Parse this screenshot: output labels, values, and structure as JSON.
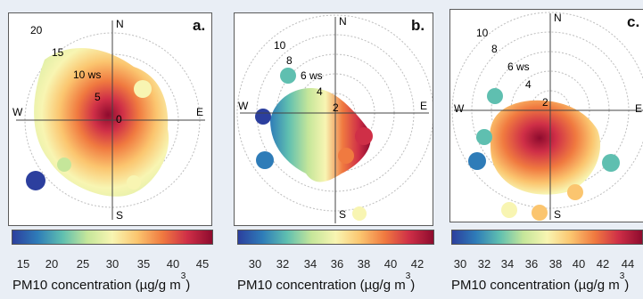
{
  "colors": {
    "scale": [
      "#2c3f9e",
      "#2e7cb8",
      "#5fbfb0",
      "#c5e69a",
      "#f8f5b2",
      "#fbc56f",
      "#f07a40",
      "#cf2f47",
      "#8e0b2e"
    ],
    "axis": "#444444",
    "ring": "#bdbdbd"
  },
  "labels": {
    "north": "N",
    "south": "S",
    "east": "E",
    "west": "W",
    "unit_label": "PM10 concentration (µg/g m",
    "unit_sup": "3",
    "unit_close": ")"
  },
  "panels": [
    {
      "letter": "a.",
      "ring_labels": [
        "20",
        "15",
        "10 ws",
        "5",
        "0"
      ],
      "ticks": [
        "15",
        "20",
        "25",
        "30",
        "35",
        "40",
        "45"
      ]
    },
    {
      "letter": "b.",
      "ring_labels": [
        "10",
        "8",
        "6 ws",
        "4",
        "2"
      ],
      "ticks": [
        "30",
        "32",
        "34",
        "36",
        "38",
        "40",
        "42"
      ]
    },
    {
      "letter": "c.",
      "ring_labels": [
        "10",
        "8",
        "6 ws",
        "4",
        "2"
      ],
      "ticks": [
        "30",
        "32",
        "34",
        "36",
        "38",
        "40",
        "42",
        "44"
      ]
    }
  ]
}
